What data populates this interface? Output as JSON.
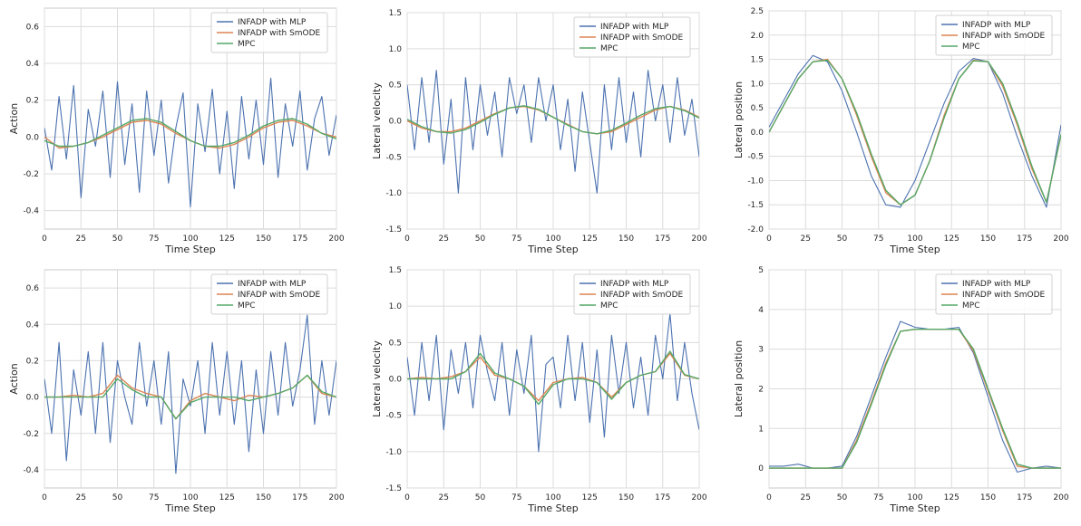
{
  "colors": {
    "mlp": "#4c72b0",
    "smode": "#dd8452",
    "mpc": "#55a868",
    "grid": "#dcdcdc",
    "spine": "#c8c8c8"
  },
  "chart_data": [
    {
      "type": "line",
      "xlabel": "Time Step",
      "ylabel": "Action",
      "xlim": [
        0,
        200
      ],
      "ylim": [
        -0.5,
        0.7
      ],
      "xticks": [
        "0",
        "25",
        "50",
        "75",
        "100",
        "125",
        "150",
        "175",
        "200"
      ],
      "yticks": [
        "-0.4",
        "-0.2",
        "0.0",
        "0.2",
        "0.4",
        "0.6"
      ],
      "grid": true,
      "legend": "top-right",
      "series": [
        {
          "name": "INFADP with MLP",
          "color": "#4c72b0",
          "x_step": 5,
          "values": [
            0.05,
            -0.18,
            0.22,
            -0.12,
            0.28,
            -0.33,
            0.15,
            -0.05,
            0.25,
            -0.22,
            0.3,
            -0.15,
            0.18,
            -0.3,
            0.25,
            -0.1,
            0.2,
            -0.25,
            0.05,
            0.24,
            -0.38,
            0.18,
            -0.08,
            0.26,
            -0.2,
            0.14,
            -0.28,
            0.22,
            -0.12,
            0.2,
            -0.15,
            0.32,
            -0.22,
            0.18,
            -0.05,
            0.25,
            -0.18,
            0.1,
            0.22,
            -0.1,
            0.12
          ]
        },
        {
          "name": "INFADP with SmODE",
          "color": "#dd8452",
          "x_step": 10,
          "values": [
            0.0,
            -0.06,
            -0.05,
            -0.03,
            0.0,
            0.04,
            0.08,
            0.09,
            0.07,
            0.02,
            -0.02,
            -0.05,
            -0.06,
            -0.04,
            0.0,
            0.05,
            0.08,
            0.09,
            0.06,
            0.02,
            0.0
          ]
        },
        {
          "name": "MPC",
          "color": "#55a868",
          "x_step": 10,
          "values": [
            -0.02,
            -0.05,
            -0.05,
            -0.03,
            0.01,
            0.05,
            0.09,
            0.1,
            0.08,
            0.03,
            -0.02,
            -0.05,
            -0.05,
            -0.03,
            0.01,
            0.06,
            0.09,
            0.1,
            0.07,
            0.02,
            -0.01
          ]
        }
      ]
    },
    {
      "type": "line",
      "xlabel": "Time Step",
      "ylabel": "Lateral velocity",
      "xlim": [
        0,
        200
      ],
      "ylim": [
        -1.5,
        1.5
      ],
      "xticks": [
        "0",
        "25",
        "50",
        "75",
        "100",
        "125",
        "150",
        "175",
        "200"
      ],
      "yticks": [
        "-1.5",
        "-1.0",
        "-0.5",
        "0.0",
        "0.5",
        "1.0",
        "1.5"
      ],
      "grid": true,
      "legend": "top-right",
      "series": [
        {
          "name": "INFADP with MLP",
          "color": "#4c72b0",
          "x_step": 5,
          "values": [
            0.5,
            -0.4,
            0.6,
            -0.3,
            0.7,
            -0.6,
            0.3,
            -1.0,
            0.6,
            -0.4,
            0.5,
            -0.2,
            0.4,
            -0.5,
            0.6,
            0.1,
            0.5,
            -0.3,
            0.6,
            0.0,
            0.5,
            -0.4,
            0.3,
            -0.7,
            0.4,
            -0.3,
            -1.0,
            0.5,
            -0.4,
            0.6,
            -0.3,
            0.4,
            -0.5,
            0.7,
            0.0,
            0.5,
            -0.3,
            0.6,
            -0.2,
            0.3,
            -0.5
          ]
        },
        {
          "name": "INFADP with SmODE",
          "color": "#dd8452",
          "x_step": 10,
          "values": [
            0.0,
            -0.1,
            -0.15,
            -0.15,
            -0.1,
            0.0,
            0.1,
            0.18,
            0.2,
            0.15,
            0.05,
            -0.05,
            -0.15,
            -0.18,
            -0.15,
            -0.05,
            0.05,
            0.15,
            0.2,
            0.15,
            0.05
          ]
        },
        {
          "name": "MPC",
          "color": "#55a868",
          "x_step": 10,
          "values": [
            0.02,
            -0.08,
            -0.15,
            -0.17,
            -0.12,
            -0.02,
            0.09,
            0.18,
            0.21,
            0.16,
            0.05,
            -0.06,
            -0.15,
            -0.18,
            -0.13,
            -0.03,
            0.08,
            0.17,
            0.2,
            0.14,
            0.04
          ]
        }
      ]
    },
    {
      "type": "line",
      "xlabel": "Time Step",
      "ylabel": "Lateral position",
      "xlim": [
        0,
        200
      ],
      "ylim": [
        -2.0,
        2.5
      ],
      "xticks": [
        "0",
        "25",
        "50",
        "75",
        "100",
        "125",
        "150",
        "175",
        "200"
      ],
      "yticks": [
        "-2.0",
        "-1.5",
        "-1.0",
        "-0.5",
        "0.0",
        "0.5",
        "1.0",
        "1.5",
        "2.0",
        "2.5"
      ],
      "grid": true,
      "legend": "top-right",
      "series": [
        {
          "name": "INFADP with MLP",
          "color": "#4c72b0",
          "x_step": 10,
          "values": [
            0.1,
            0.65,
            1.2,
            1.58,
            1.45,
            0.85,
            0.0,
            -0.9,
            -1.5,
            -1.55,
            -1.0,
            -0.2,
            0.6,
            1.25,
            1.52,
            1.45,
            0.8,
            -0.1,
            -0.9,
            -1.55,
            0.15
          ]
        },
        {
          "name": "INFADP with SmODE",
          "color": "#dd8452",
          "x_step": 10,
          "values": [
            0.0,
            0.55,
            1.1,
            1.45,
            1.5,
            1.1,
            0.35,
            -0.5,
            -1.25,
            -1.5,
            -1.3,
            -0.6,
            0.35,
            1.1,
            1.48,
            1.45,
            0.95,
            0.15,
            -0.75,
            -1.45,
            -0.05
          ]
        },
        {
          "name": "MPC",
          "color": "#55a868",
          "x_step": 10,
          "values": [
            0.0,
            0.55,
            1.1,
            1.45,
            1.48,
            1.1,
            0.4,
            -0.45,
            -1.2,
            -1.5,
            -1.3,
            -0.6,
            0.3,
            1.1,
            1.47,
            1.45,
            1.0,
            0.2,
            -0.7,
            -1.45,
            -0.05
          ]
        }
      ]
    },
    {
      "type": "line",
      "xlabel": "Time Step",
      "ylabel": "Action",
      "xlim": [
        0,
        200
      ],
      "ylim": [
        -0.5,
        0.7
      ],
      "xticks": [
        "0",
        "25",
        "50",
        "75",
        "100",
        "125",
        "150",
        "175",
        "200"
      ],
      "yticks": [
        "-0.4",
        "-0.2",
        "0.0",
        "0.2",
        "0.4",
        "0.6"
      ],
      "grid": true,
      "legend": "top-right",
      "series": [
        {
          "name": "INFADP with MLP",
          "color": "#4c72b0",
          "x_step": 5,
          "values": [
            0.1,
            -0.2,
            0.3,
            -0.35,
            0.15,
            -0.1,
            0.25,
            -0.2,
            0.3,
            -0.25,
            0.2,
            0.0,
            -0.15,
            0.3,
            -0.05,
            0.2,
            -0.15,
            0.25,
            -0.42,
            0.1,
            -0.05,
            0.2,
            -0.2,
            0.3,
            -0.1,
            0.25,
            -0.15,
            0.2,
            -0.3,
            0.15,
            -0.2,
            0.25,
            -0.1,
            0.3,
            -0.05,
            0.15,
            0.45,
            -0.15,
            0.2,
            -0.1,
            0.2
          ]
        },
        {
          "name": "INFADP with SmODE",
          "color": "#dd8452",
          "x_step": 10,
          "values": [
            0.0,
            0.0,
            0.01,
            0.0,
            0.02,
            0.12,
            0.05,
            0.02,
            0.0,
            -0.12,
            -0.02,
            0.02,
            0.0,
            -0.02,
            0.01,
            0.0,
            0.02,
            0.05,
            0.12,
            0.02,
            0.0
          ]
        },
        {
          "name": "MPC",
          "color": "#55a868",
          "x_step": 10,
          "values": [
            0.0,
            0.0,
            0.0,
            0.0,
            0.0,
            0.1,
            0.04,
            0.0,
            0.0,
            -0.12,
            -0.03,
            0.0,
            0.0,
            0.0,
            -0.02,
            0.0,
            0.02,
            0.05,
            0.12,
            0.03,
            0.0
          ]
        }
      ]
    },
    {
      "type": "line",
      "xlabel": "Time Step",
      "ylabel": "Lateral velocity",
      "xlim": [
        0,
        200
      ],
      "ylim": [
        -1.5,
        1.5
      ],
      "xticks": [
        "0",
        "25",
        "50",
        "75",
        "100",
        "125",
        "150",
        "175",
        "200"
      ],
      "yticks": [
        "-1.5",
        "-1.0",
        "-0.5",
        "0.0",
        "0.5",
        "1.0",
        "1.5"
      ],
      "grid": true,
      "legend": "top-right",
      "series": [
        {
          "name": "INFADP with MLP",
          "color": "#4c72b0",
          "x_step": 5,
          "values": [
            0.3,
            -0.5,
            0.5,
            -0.3,
            0.6,
            -0.7,
            0.4,
            -0.2,
            0.5,
            -0.4,
            0.6,
            0.1,
            -0.3,
            0.5,
            -0.5,
            0.4,
            -0.2,
            0.6,
            -1.0,
            0.2,
            0.3,
            -0.4,
            0.6,
            -0.3,
            0.5,
            -0.6,
            0.4,
            -0.8,
            0.6,
            -0.2,
            0.5,
            -0.4,
            0.3,
            -0.5,
            0.6,
            0.0,
            0.9,
            -0.3,
            0.5,
            -0.2,
            -0.7
          ]
        },
        {
          "name": "INFADP with SmODE",
          "color": "#dd8452",
          "x_step": 10,
          "values": [
            0.0,
            0.02,
            0.0,
            0.03,
            0.1,
            0.3,
            0.05,
            0.0,
            -0.1,
            -0.3,
            -0.05,
            0.0,
            0.02,
            -0.05,
            -0.25,
            -0.05,
            0.05,
            0.1,
            0.35,
            0.05,
            0.0
          ]
        },
        {
          "name": "MPC",
          "color": "#55a868",
          "x_step": 10,
          "values": [
            0.0,
            0.0,
            0.0,
            0.0,
            0.1,
            0.35,
            0.08,
            0.0,
            -0.1,
            -0.35,
            -0.08,
            0.0,
            0.0,
            -0.05,
            -0.28,
            -0.05,
            0.05,
            0.1,
            0.38,
            0.06,
            0.0
          ]
        }
      ]
    },
    {
      "type": "line",
      "xlabel": "Time Step",
      "ylabel": "Lateral position",
      "xlim": [
        0,
        200
      ],
      "ylim": [
        -0.5,
        5
      ],
      "xticks": [
        "0",
        "25",
        "50",
        "75",
        "100",
        "125",
        "150",
        "175",
        "200"
      ],
      "yticks": [
        "0",
        "1",
        "2",
        "3",
        "4",
        "5"
      ],
      "grid": true,
      "legend": "top-right",
      "series": [
        {
          "name": "INFADP with MLP",
          "color": "#4c72b0",
          "x_step": 10,
          "values": [
            0.05,
            0.05,
            0.1,
            0.0,
            0.0,
            0.05,
            0.8,
            1.8,
            2.8,
            3.7,
            3.55,
            3.5,
            3.5,
            3.55,
            2.9,
            1.8,
            0.7,
            -0.1,
            0.0,
            0.05,
            0.0
          ]
        },
        {
          "name": "INFADP with SmODE",
          "color": "#dd8452",
          "x_step": 10,
          "values": [
            0.0,
            0.0,
            0.0,
            0.0,
            0.0,
            0.0,
            0.7,
            1.65,
            2.65,
            3.45,
            3.5,
            3.5,
            3.5,
            3.5,
            2.95,
            1.95,
            0.95,
            0.05,
            0.0,
            0.0,
            0.0
          ]
        },
        {
          "name": "MPC",
          "color": "#55a868",
          "x_step": 10,
          "values": [
            0.0,
            0.0,
            0.0,
            0.0,
            0.0,
            0.0,
            0.65,
            1.6,
            2.6,
            3.45,
            3.5,
            3.5,
            3.5,
            3.5,
            3.0,
            2.0,
            1.0,
            0.1,
            0.0,
            0.0,
            0.0
          ]
        }
      ]
    }
  ]
}
